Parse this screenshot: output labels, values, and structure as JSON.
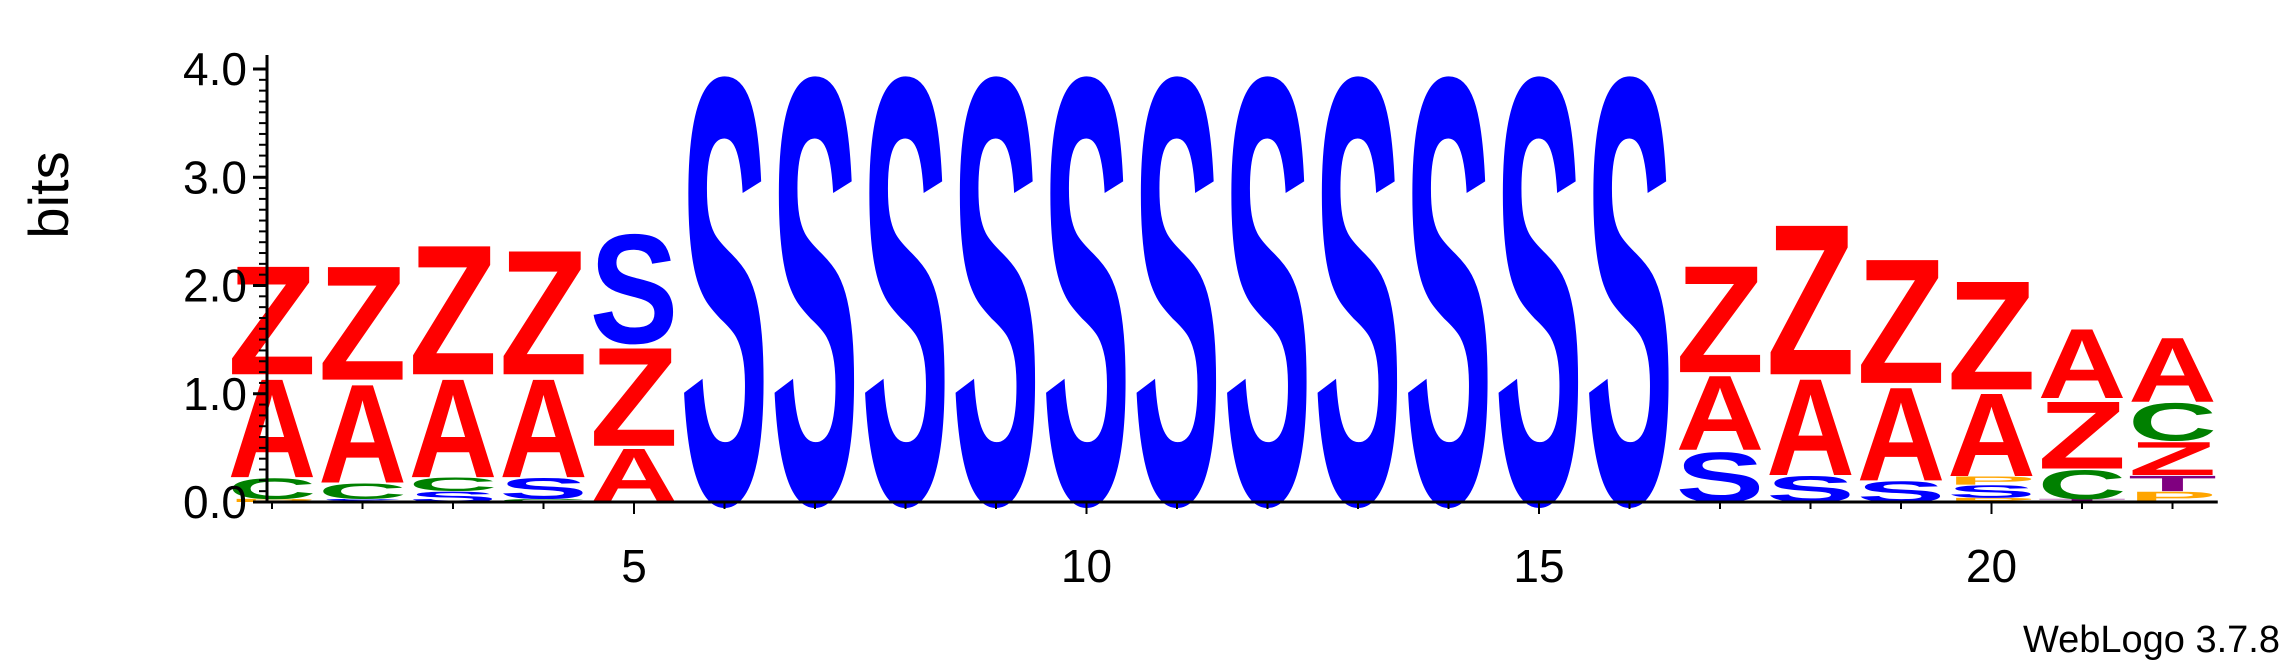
{
  "chart_data": {
    "type": "sequence-logo",
    "ylabel": "bits",
    "ylim": [
      0,
      4.0
    ],
    "y_ticks": [
      "0.0",
      "1.0",
      "2.0",
      "3.0",
      "4.0"
    ],
    "x_ticks": [
      "5",
      "10",
      "15",
      "20"
    ],
    "footer": "WebLogo 3.7.8",
    "colors": {
      "Z": "#ff0000",
      "A": "#ff0000",
      "S": "#0000ff",
      "C": "#008000",
      "T": "#800080",
      "P": "#ffa500"
    },
    "positions": [
      {
        "pos": 1,
        "stack": [
          {
            "letter": "P",
            "bits": 0.03
          },
          {
            "letter": "C",
            "bits": 0.2
          },
          {
            "letter": "A",
            "bits": 0.95
          },
          {
            "letter": "Z",
            "bits": 1.05
          }
        ]
      },
      {
        "pos": 2,
        "stack": [
          {
            "letter": "S",
            "bits": 0.03
          },
          {
            "letter": "C",
            "bits": 0.15
          },
          {
            "letter": "A",
            "bits": 0.95
          },
          {
            "letter": "Z",
            "bits": 1.1
          }
        ]
      },
      {
        "pos": 3,
        "stack": [
          {
            "letter": "S",
            "bits": 0.1
          },
          {
            "letter": "C",
            "bits": 0.13
          },
          {
            "letter": "A",
            "bits": 0.95
          },
          {
            "letter": "Z",
            "bits": 1.25
          }
        ]
      },
      {
        "pos": 4,
        "stack": [
          {
            "letter": "C",
            "bits": 0.03
          },
          {
            "letter": "S",
            "bits": 0.2
          },
          {
            "letter": "A",
            "bits": 0.95
          },
          {
            "letter": "Z",
            "bits": 1.2
          }
        ]
      },
      {
        "pos": 5,
        "stack": [
          {
            "letter": "A",
            "bits": 0.52
          },
          {
            "letter": "Z",
            "bits": 0.95
          },
          {
            "letter": "S",
            "bits": 1.05
          }
        ]
      },
      {
        "pos": 6,
        "stack": [
          {
            "letter": "S",
            "bits": 4.1
          }
        ]
      },
      {
        "pos": 7,
        "stack": [
          {
            "letter": "S",
            "bits": 4.1
          }
        ]
      },
      {
        "pos": 8,
        "stack": [
          {
            "letter": "S",
            "bits": 4.1
          }
        ]
      },
      {
        "pos": 9,
        "stack": [
          {
            "letter": "S",
            "bits": 4.1
          }
        ]
      },
      {
        "pos": 10,
        "stack": [
          {
            "letter": "S",
            "bits": 4.1
          }
        ]
      },
      {
        "pos": 11,
        "stack": [
          {
            "letter": "S",
            "bits": 4.1
          }
        ]
      },
      {
        "pos": 12,
        "stack": [
          {
            "letter": "S",
            "bits": 4.1
          }
        ]
      },
      {
        "pos": 13,
        "stack": [
          {
            "letter": "S",
            "bits": 4.1
          }
        ]
      },
      {
        "pos": 14,
        "stack": [
          {
            "letter": "S",
            "bits": 4.1
          }
        ]
      },
      {
        "pos": 15,
        "stack": [
          {
            "letter": "S",
            "bits": 4.1
          }
        ]
      },
      {
        "pos": 16,
        "stack": [
          {
            "letter": "S",
            "bits": 4.1
          }
        ]
      },
      {
        "pos": 17,
        "stack": [
          {
            "letter": "S",
            "bits": 0.48
          },
          {
            "letter": "A",
            "bits": 0.72
          },
          {
            "letter": "Z",
            "bits": 1.03
          }
        ]
      },
      {
        "pos": 18,
        "stack": [
          {
            "letter": "S",
            "bits": 0.25
          },
          {
            "letter": "A",
            "bits": 0.93
          },
          {
            "letter": "Z",
            "bits": 1.45
          }
        ]
      },
      {
        "pos": 19,
        "stack": [
          {
            "letter": "S",
            "bits": 0.2
          },
          {
            "letter": "A",
            "bits": 0.9
          },
          {
            "letter": "Z",
            "bits": 1.2
          }
        ]
      },
      {
        "pos": 20,
        "stack": [
          {
            "letter": "P",
            "bits": 0.04
          },
          {
            "letter": "S",
            "bits": 0.12
          },
          {
            "letter": "P",
            "bits": 0.08
          },
          {
            "letter": "A",
            "bits": 0.8
          },
          {
            "letter": "Z",
            "bits": 1.05
          }
        ]
      },
      {
        "pos": 21,
        "stack": [
          {
            "letter": "T",
            "bits": 0.03
          },
          {
            "letter": "C",
            "bits": 0.28
          },
          {
            "letter": "Z",
            "bits": 0.65
          },
          {
            "letter": "A",
            "bits": 0.67
          }
        ]
      },
      {
        "pos": 22,
        "stack": [
          {
            "letter": "P",
            "bits": 0.1
          },
          {
            "letter": "T",
            "bits": 0.15
          },
          {
            "letter": "Z",
            "bits": 0.32
          },
          {
            "letter": "C",
            "bits": 0.36
          },
          {
            "letter": "A",
            "bits": 0.62
          }
        ]
      }
    ]
  }
}
